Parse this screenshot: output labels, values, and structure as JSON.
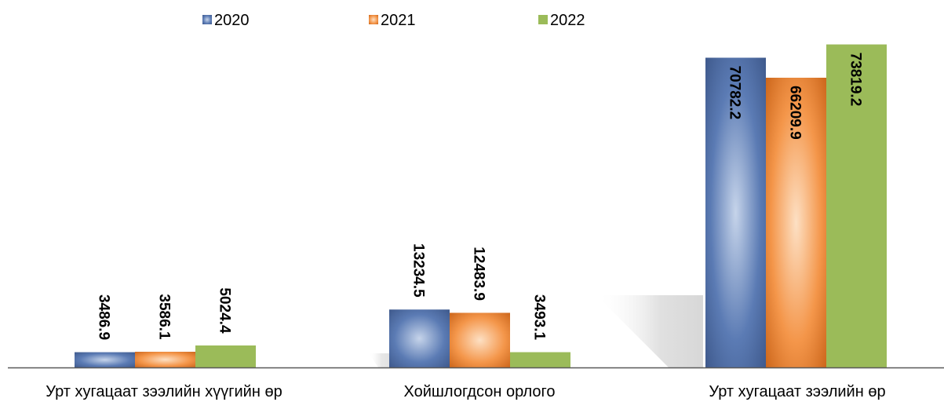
{
  "chart_data": {
    "type": "bar",
    "categories": [
      "Урт хугацаат зээлийн хүүгийн өр",
      "Хойшлогдсон орлого",
      "Урт хугацаат зээлийн өр"
    ],
    "series": [
      {
        "name": "2020",
        "values": [
          3486.9,
          13234.5,
          70782.2
        ]
      },
      {
        "name": "2021",
        "values": [
          3586.1,
          12483.9,
          66209.9
        ]
      },
      {
        "name": "2022",
        "values": [
          5024.4,
          3493.1,
          73819.2
        ]
      }
    ],
    "value_labels": [
      [
        "3486.9",
        "13234.5",
        "70782.2"
      ],
      [
        "3586.1",
        "12483.9",
        "66209.9"
      ],
      [
        "5024.4",
        "3493.1",
        "73819.2"
      ]
    ],
    "title": "",
    "xlabel": "",
    "ylabel": "",
    "ylim": [
      0,
      75000
    ],
    "grid": false,
    "legend_position": "top",
    "colors": {
      "2020": {
        "light": "#c6d4ea",
        "base": "#5b7bb4",
        "dark": "#3a5486"
      },
      "2021": {
        "light": "#fde0c4",
        "base": "#f4964a",
        "dark": "#c65f14"
      },
      "2022": {
        "solid": "#9bbb59"
      }
    },
    "axis_color": "#595959"
  }
}
